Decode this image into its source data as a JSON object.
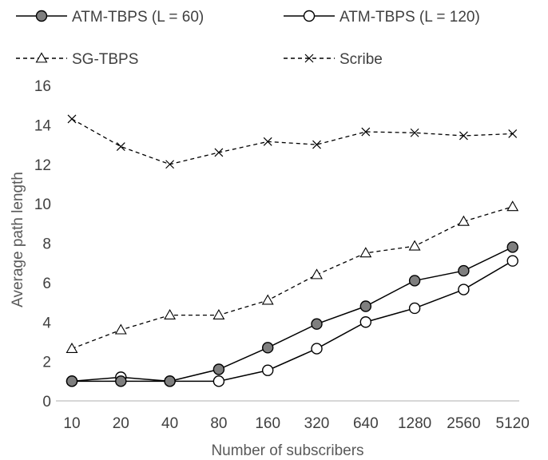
{
  "chart_data": {
    "type": "line",
    "title": "",
    "xlabel": "Number of subscribers",
    "ylabel": "Average path length",
    "categories": [
      "10",
      "20",
      "40",
      "80",
      "160",
      "320",
      "640",
      "1280",
      "2560",
      "5120"
    ],
    "ylim": [
      0,
      16
    ],
    "yticks": [
      0,
      2,
      4,
      6,
      8,
      10,
      12,
      14,
      16
    ],
    "grid": false,
    "legend_position": "top",
    "series": [
      {
        "name": "ATM-TBPS (L = 60)",
        "marker": "circle-filled",
        "line": "solid",
        "values": [
          1.0,
          1.0,
          1.0,
          1.6,
          2.7,
          3.9,
          4.8,
          6.1,
          6.6,
          7.8
        ]
      },
      {
        "name": "ATM-TBPS (L = 120)",
        "marker": "circle-open",
        "line": "solid",
        "values": [
          1.0,
          1.2,
          1.0,
          1.0,
          1.55,
          2.65,
          4.0,
          4.7,
          5.65,
          7.1
        ]
      },
      {
        "name": "SG-TBPS",
        "marker": "triangle-open",
        "line": "dashed",
        "values": [
          2.65,
          3.6,
          4.35,
          4.35,
          5.1,
          6.4,
          7.5,
          7.85,
          9.1,
          9.85
        ]
      },
      {
        "name": "Scribe",
        "marker": "cross",
        "line": "dashed",
        "values": [
          14.3,
          12.9,
          12.0,
          12.6,
          13.15,
          13.0,
          13.65,
          13.6,
          13.45,
          13.55
        ]
      }
    ]
  },
  "colors": {
    "line": "#000000",
    "axis": "#bfbfbf",
    "filled_marker": "#7f7f7f",
    "text": "#404040"
  }
}
